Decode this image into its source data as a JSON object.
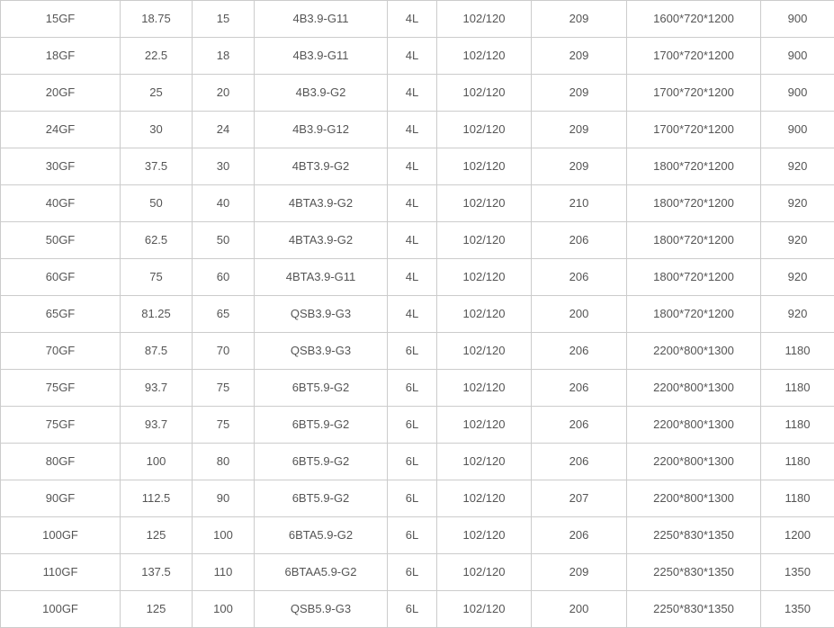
{
  "colors": {
    "bg": "#ffffff",
    "border": "#cccccc",
    "text": "#555555"
  },
  "table": {
    "rows": [
      {
        "cells": [
          "15GF",
          "18.75",
          "15",
          "4B3.9-G11",
          "4L",
          "102/120",
          "209",
          "1600*720*1200",
          "900"
        ]
      },
      {
        "cells": [
          "18GF",
          "22.5",
          "18",
          "4B3.9-G11",
          "4L",
          "102/120",
          "209",
          "1700*720*1200",
          "900"
        ]
      },
      {
        "cells": [
          "20GF",
          "25",
          "20",
          "4B3.9-G2",
          "4L",
          "102/120",
          "209",
          "1700*720*1200",
          "900"
        ]
      },
      {
        "cells": [
          "24GF",
          "30",
          "24",
          "4B3.9-G12",
          "4L",
          "102/120",
          "209",
          "1700*720*1200",
          "900"
        ]
      },
      {
        "cells": [
          "30GF",
          "37.5",
          "30",
          "4BT3.9-G2",
          "4L",
          "102/120",
          "209",
          "1800*720*1200",
          "920"
        ]
      },
      {
        "cells": [
          "40GF",
          "50",
          "40",
          "4BTA3.9-G2",
          "4L",
          "102/120",
          "210",
          "1800*720*1200",
          "920"
        ]
      },
      {
        "cells": [
          "50GF",
          "62.5",
          "50",
          "4BTA3.9-G2",
          "4L",
          "102/120",
          "206",
          "1800*720*1200",
          "920"
        ]
      },
      {
        "cells": [
          "60GF",
          "75",
          "60",
          "4BTA3.9-G11",
          "4L",
          "102/120",
          "206",
          "1800*720*1200",
          "920"
        ]
      },
      {
        "cells": [
          "65GF",
          "81.25",
          "65",
          "QSB3.9-G3",
          "4L",
          "102/120",
          "200",
          "1800*720*1200",
          "920"
        ]
      },
      {
        "cells": [
          "70GF",
          "87.5",
          "70",
          "QSB3.9-G3",
          "6L",
          "102/120",
          "206",
          "2200*800*1300",
          "1180"
        ]
      },
      {
        "cells": [
          "75GF",
          "93.7",
          "75",
          "6BT5.9-G2",
          "6L",
          "102/120",
          "206",
          "2200*800*1300",
          "1180"
        ]
      },
      {
        "cells": [
          "75GF",
          "93.7",
          "75",
          "6BT5.9-G2",
          "6L",
          "102/120",
          "206",
          "2200*800*1300",
          "1180"
        ]
      },
      {
        "cells": [
          "80GF",
          "100",
          "80",
          "6BT5.9-G2",
          "6L",
          "102/120",
          "206",
          "2200*800*1300",
          "1180"
        ]
      },
      {
        "cells": [
          "90GF",
          "112.5",
          "90",
          "6BT5.9-G2",
          "6L",
          "102/120",
          "207",
          "2200*800*1300",
          "1180"
        ]
      },
      {
        "cells": [
          "100GF",
          "125",
          "100",
          "6BTA5.9-G2",
          "6L",
          "102/120",
          "206",
          "2250*830*1350",
          "1200"
        ]
      },
      {
        "cells": [
          "110GF",
          "137.5",
          "110",
          "6BTAA5.9-G2",
          "6L",
          "102/120",
          "209",
          "2250*830*1350",
          "1350"
        ]
      },
      {
        "cells": [
          "100GF",
          "125",
          "100",
          "QSB5.9-G3",
          "6L",
          "102/120",
          "200",
          "2250*830*1350",
          "1350"
        ]
      }
    ]
  }
}
